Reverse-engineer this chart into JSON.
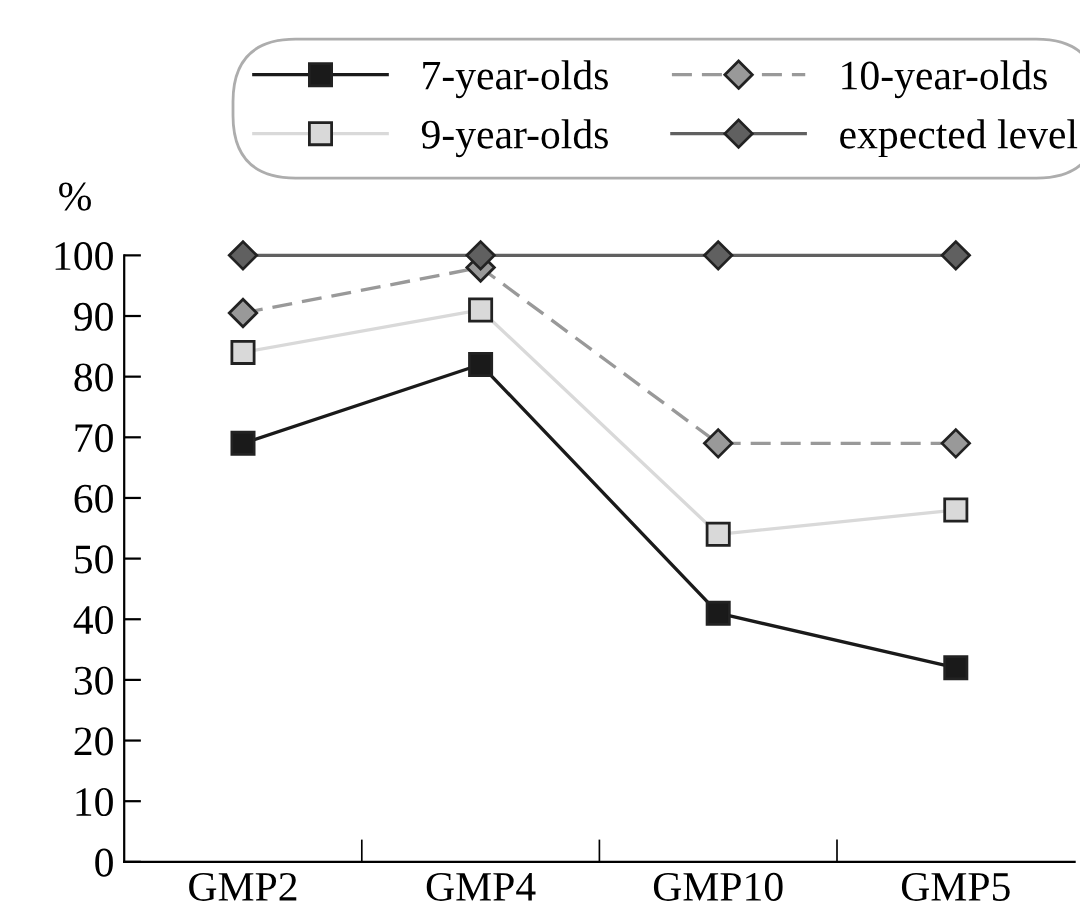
{
  "chart_data": {
    "type": "line",
    "ylabel": "%",
    "categories": [
      "GMP2",
      "GMP4",
      "GMP10",
      "GMP5"
    ],
    "series": [
      {
        "name": "7-year-olds",
        "color": "#1a1a1a",
        "values": [
          69,
          82,
          41,
          32
        ],
        "marker": "square",
        "line_style": "solid"
      },
      {
        "name": "9-year-olds",
        "color": "#d9d9d9",
        "values": [
          84,
          91,
          54,
          58
        ],
        "marker": "square",
        "line_style": "solid"
      },
      {
        "name": "10-year-olds",
        "color": "#999999",
        "values": [
          90.5,
          98,
          69,
          69
        ],
        "marker": "diamond",
        "line_style": "dashed"
      },
      {
        "name": "expected level",
        "color": "#606060",
        "values": [
          100,
          100,
          100,
          100
        ],
        "marker": "diamond",
        "line_style": "solid"
      }
    ],
    "ylim": [
      0,
      100
    ],
    "yticks": [
      0,
      10,
      20,
      30,
      40,
      50,
      60,
      70,
      80,
      90,
      100
    ],
    "grid": false,
    "legend": "top"
  }
}
